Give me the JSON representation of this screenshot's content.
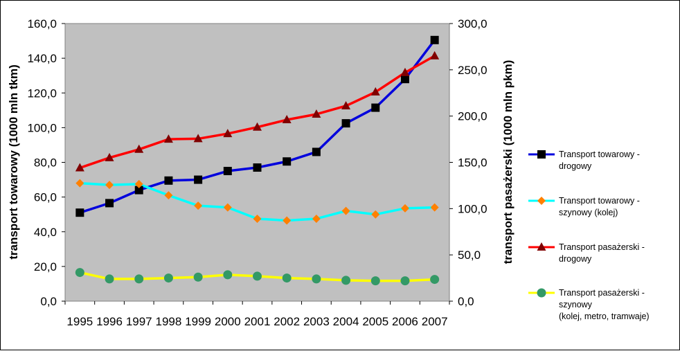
{
  "chart_data": {
    "type": "line",
    "categories": [
      "1995",
      "1996",
      "1997",
      "1998",
      "1999",
      "2000",
      "2001",
      "2002",
      "2003",
      "2004",
      "2005",
      "2006",
      "2007"
    ],
    "y_left": {
      "label": "transport towarowy (1000 mln tkm)",
      "ylim": [
        0,
        160
      ],
      "ticks": [
        "0,0",
        "20,0",
        "40,0",
        "60,0",
        "80,0",
        "100,0",
        "120,0",
        "140,0",
        "160,0"
      ]
    },
    "y_right": {
      "label": "transport pasażerski (1000 mln pkm)",
      "ylim": [
        0,
        300
      ],
      "ticks": [
        "0,0",
        "50,0",
        "100,0",
        "150,0",
        "200,0",
        "250,0",
        "300,0"
      ]
    },
    "grid": false,
    "plot_background": "#c0c0c0",
    "legend_position": "right",
    "series": [
      {
        "name_lines": [
          "Transport  towarowy  -",
          "drogowy"
        ],
        "axis": "left",
        "line_color": "#0000dd",
        "marker": "square",
        "marker_color": "#000000",
        "values": [
          51,
          56.5,
          64,
          69.5,
          70,
          75,
          77,
          80.5,
          86,
          102.5,
          111.5,
          128,
          150.5
        ]
      },
      {
        "name_lines": [
          "Transport  towarowy  -",
          "szynowy (kolej)"
        ],
        "axis": "left",
        "line_color": "#00ffff",
        "marker": "diamond",
        "marker_color": "#ff8000",
        "values": [
          68,
          67,
          67.5,
          61,
          55,
          54,
          47.5,
          46.5,
          47.5,
          52,
          50,
          53.5,
          54
        ]
      },
      {
        "name_lines": [
          "Transport  pasażerski  -",
          "drogowy"
        ],
        "axis": "right",
        "line_color": "#ff0000",
        "marker": "triangle",
        "marker_color": "#800000",
        "values": [
          144,
          155,
          164,
          175,
          175.5,
          181,
          188,
          196,
          202,
          211,
          226,
          247,
          265
        ]
      },
      {
        "name_lines": [
          "Transport  pasażerski  -",
          "szynowy",
          "(kolej, metro, tramwaje)"
        ],
        "axis": "right",
        "line_color": "#ffff00",
        "marker": "circle",
        "marker_color": "#339966",
        "values": [
          31,
          24,
          24,
          25,
          26,
          28.5,
          27,
          25,
          24,
          22.5,
          22,
          22,
          23.5
        ]
      }
    ]
  }
}
